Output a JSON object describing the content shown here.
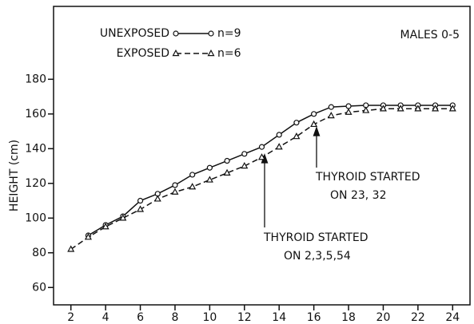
{
  "chart_data": {
    "type": "line",
    "y_label": "HEIGHT (cm)",
    "x": [
      2,
      3,
      4,
      5,
      6,
      7,
      8,
      9,
      10,
      11,
      12,
      13,
      14,
      15,
      16,
      17,
      18,
      19,
      20,
      21,
      22,
      23,
      24
    ],
    "series": [
      {
        "name": "UNEXPOSED",
        "n_label": "n=9",
        "color": "#111111",
        "dash": false,
        "marker": "circle",
        "values": [
          null,
          90,
          96,
          101,
          110,
          114,
          119,
          125,
          129,
          133,
          137,
          141,
          148,
          155,
          160,
          164,
          164.5,
          165,
          165,
          165,
          165,
          165,
          165
        ]
      },
      {
        "name": "EXPOSED",
        "n_label": "n=6",
        "color": "#111111",
        "dash": true,
        "marker": "triangle",
        "values": [
          82,
          89,
          95,
          100,
          105,
          111,
          115,
          118,
          122,
          126,
          130,
          135,
          141,
          147,
          154,
          159,
          161,
          162,
          163,
          163,
          163,
          163,
          163
        ]
      }
    ],
    "xlim": [
      1,
      25
    ],
    "xticks": [
      2,
      4,
      6,
      8,
      10,
      12,
      14,
      16,
      18,
      20,
      22,
      24
    ],
    "ylim": [
      50,
      222
    ],
    "yticks": [
      60,
      80,
      100,
      120,
      140,
      160,
      180
    ],
    "annotations": [
      {
        "text": "MALES 0-5"
      },
      {
        "lines": [
          "THYROID STARTED",
          "ON 23, 32"
        ]
      },
      {
        "lines": [
          "THYROID STARTED",
          "ON 2,3,5,54"
        ]
      }
    ]
  }
}
